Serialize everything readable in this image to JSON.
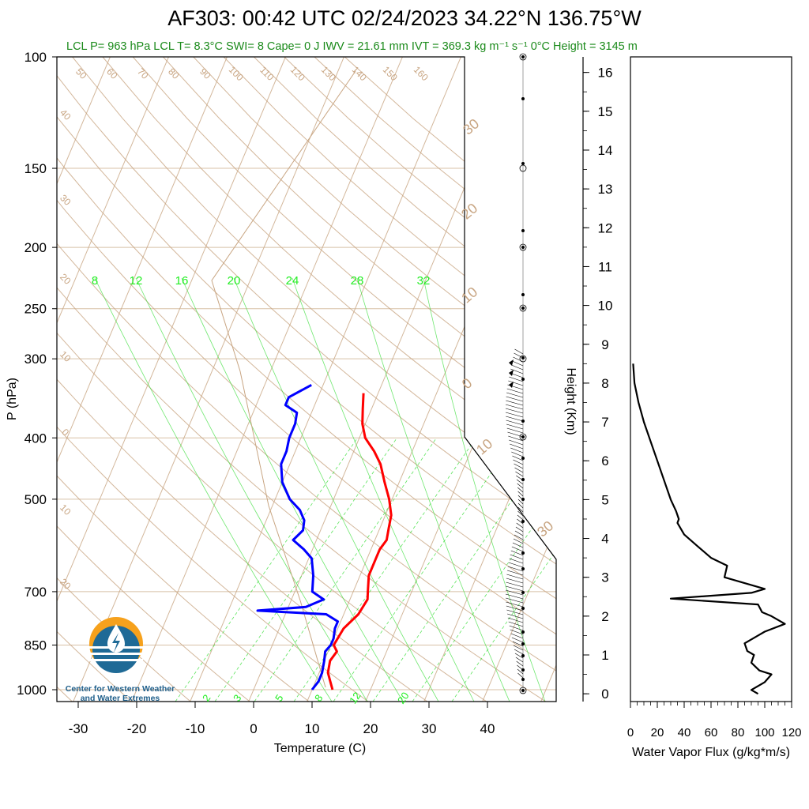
{
  "title": "AF303: 00:42 UTC 02/24/2023  34.22°N 136.75°W",
  "stats": "LCL P= 963 hPa  LCL T= 8.3°C  SWI= 8  Cape= 0 J  IWV = 21.61 mm  IVT = 369.3 kg m⁻¹ s⁻¹  0°C Height = 3145 m",
  "logo": {
    "line1": "Center for Western Weather",
    "line2": "and Water Extremes"
  },
  "colors": {
    "temperature": "#ff0000",
    "dewpoint": "#0000ff",
    "mixing_ratio": "#33dd33",
    "adiabat": "#c8a582",
    "flux": "#000000"
  },
  "chart_data": [
    {
      "type": "line",
      "name": "skew-t",
      "xlabel": "Temperature (C)",
      "ylabel": "P (hPa)",
      "xlim": [
        -34,
        50
      ],
      "ylim": [
        1050,
        100
      ],
      "log_y": true,
      "x_ticks": [
        -30,
        -20,
        -10,
        0,
        10,
        20,
        30,
        40
      ],
      "p_ticks": [
        100,
        150,
        200,
        250,
        300,
        400,
        500,
        700,
        850,
        1000
      ],
      "mixing_ratio_labels_top": [
        "8",
        "12",
        "16",
        "20",
        "24",
        "28",
        "32"
      ],
      "mixing_ratio_labels_bottom": [
        "2",
        "3",
        "5",
        "8",
        "12",
        "20"
      ],
      "dry_adiabat_labels": [
        "50",
        "60",
        "70",
        "80",
        "90",
        "100",
        "110",
        "120",
        "130",
        "140",
        "150",
        "160"
      ],
      "isotherm_labels": [
        "40",
        "30",
        "20",
        "10",
        "0",
        "10",
        "20"
      ],
      "right_isotherm_labels": [
        "30",
        "20",
        "10",
        "0",
        "10",
        "30"
      ],
      "series": [
        {
          "name": "temperature",
          "p": [
            1000,
            970,
            940,
            900,
            870,
            850,
            800,
            760,
            720,
            700,
            660,
            620,
            600,
            580,
            555,
            530,
            500,
            470,
            440,
            420,
            400,
            380,
            360,
            340
          ],
          "t": [
            13.5,
            12.5,
            11.5,
            11,
            11.5,
            10.5,
            11,
            12.5,
            13,
            12.5,
            11.5,
            11.5,
            11.5,
            12,
            11.5,
            11,
            9.5,
            7.5,
            5.5,
            3.5,
            1,
            -0.5,
            -1.5,
            -2.5
          ]
        },
        {
          "name": "dewpoint",
          "p": [
            1000,
            970,
            940,
            900,
            870,
            850,
            830,
            800,
            780,
            760,
            750,
            740,
            720,
            700,
            660,
            620,
            600,
            580,
            570,
            560,
            540,
            520,
            500,
            470,
            440,
            420,
            400,
            380,
            365,
            355,
            345,
            330
          ],
          "t": [
            10,
            10.5,
            10.5,
            10,
            9.5,
            10,
            10,
            9.5,
            9.5,
            7,
            -5,
            3,
            5.5,
            3,
            2,
            0.5,
            -1.5,
            -4,
            -3.5,
            -3,
            -3.5,
            -5,
            -7.5,
            -10,
            -11.5,
            -11.5,
            -12,
            -12,
            -12.5,
            -15,
            -15,
            -12
          ]
        }
      ]
    },
    {
      "type": "line",
      "name": "water-vapor-flux",
      "xlabel": "Water Vapor Flux (g/kg*m/s)",
      "ylabel": "Height (Km)",
      "xlim": [
        0,
        120
      ],
      "ylim": [
        -0.2,
        16.4
      ],
      "x_ticks": [
        0,
        20,
        40,
        60,
        80,
        100,
        120
      ],
      "y_ticks": [
        0,
        1,
        2,
        3,
        4,
        5,
        6,
        7,
        8,
        9,
        10,
        11,
        12,
        13,
        14,
        15,
        16
      ],
      "series": [
        {
          "name": "flux",
          "h": [
            0.0,
            0.1,
            0.3,
            0.5,
            0.6,
            0.8,
            1.0,
            1.1,
            1.3,
            1.5,
            1.6,
            1.8,
            2.0,
            2.1,
            2.3,
            2.45,
            2.6,
            2.7,
            3.0,
            3.3,
            3.5,
            3.8,
            4.1,
            4.4,
            4.5,
            4.7,
            5.0,
            5.5,
            6.0,
            6.5,
            7.0,
            7.5,
            8.0,
            8.5
          ],
          "v": [
            95,
            90,
            100,
            105,
            96,
            90,
            92,
            87,
            85,
            95,
            100,
            115,
            105,
            98,
            95,
            30,
            90,
            100,
            70,
            72,
            60,
            50,
            40,
            35,
            36,
            34,
            30,
            25,
            20,
            15,
            10,
            6,
            3,
            2
          ]
        }
      ]
    },
    {
      "type": "scatter",
      "name": "wind-barbs",
      "y_unit": "hPa",
      "note": "wind barbs plotted at right edge of skew-t diagram"
    }
  ]
}
